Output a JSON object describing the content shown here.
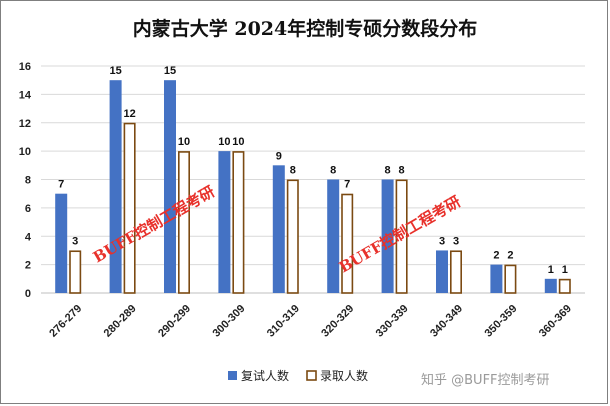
{
  "chart_data": {
    "type": "bar",
    "title": "内蒙古大学 2024年控制专硕分数段分布",
    "categories": [
      "276-279",
      "280-289",
      "290-299",
      "300-309",
      "310-319",
      "320-329",
      "330-339",
      "340-349",
      "350-359",
      "360-369"
    ],
    "series": [
      {
        "name": "复试人数",
        "values": [
          7,
          15,
          15,
          10,
          9,
          8,
          8,
          3,
          2,
          1
        ],
        "color": "#4472c4"
      },
      {
        "name": "录取人数",
        "values": [
          3,
          12,
          10,
          10,
          8,
          7,
          8,
          3,
          2,
          1
        ],
        "color": "#7b4a12"
      }
    ],
    "ylim": [
      0,
      16
    ],
    "yticks": [
      "0",
      "2",
      "4",
      "6",
      "8",
      "10",
      "12",
      "14",
      "16"
    ],
    "grid": true,
    "legend": "bottom",
    "watermarks": [
      "BUFF控制工程考研",
      "BUFF控制工程考研"
    ],
    "credit": "知乎 @BUFF控制考研"
  }
}
